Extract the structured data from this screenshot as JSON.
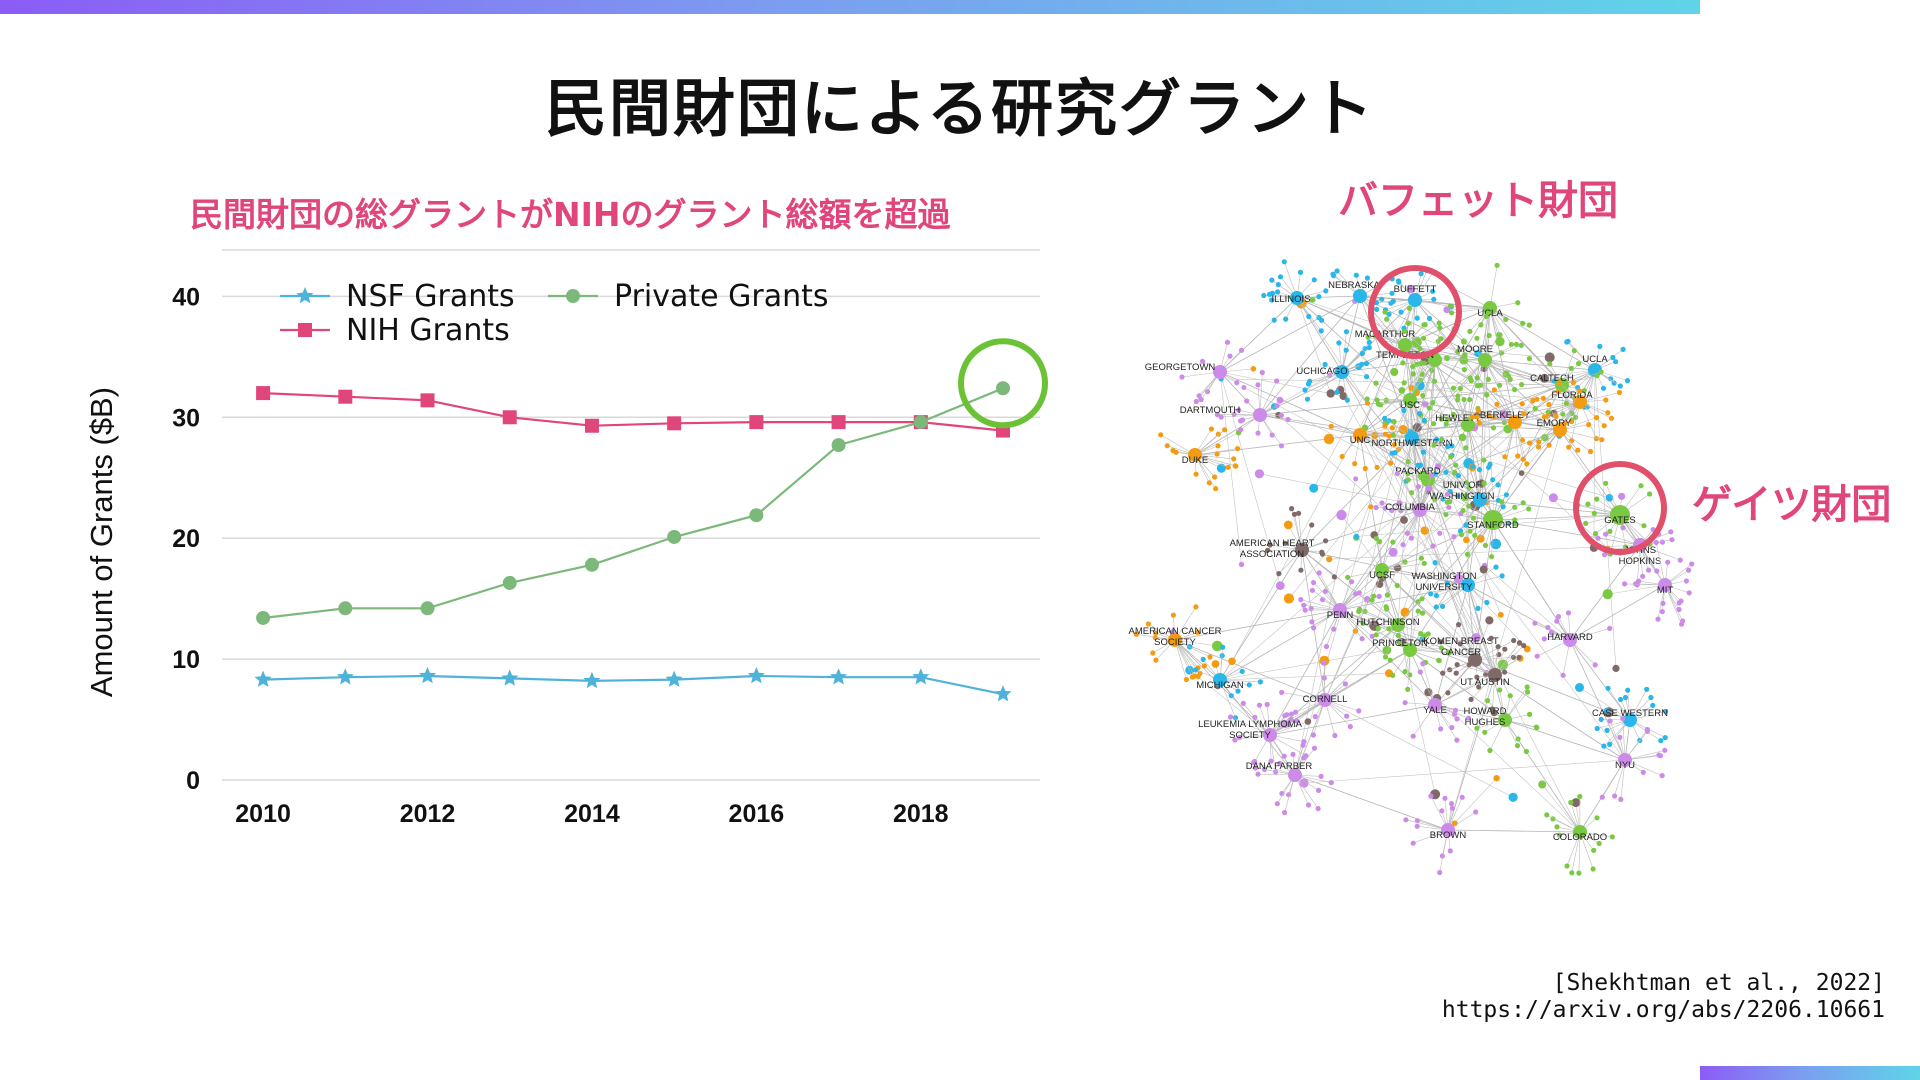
{
  "slide": {
    "title": "民間財団による研究グラント",
    "chart_subtitle": "民間財団の総グラントがNIHのグラント総額を超過",
    "citation_line1": "[Shekhtman et al., 2022]",
    "citation_line2": "https://arxiv.org/abs/2206.10661"
  },
  "colors": {
    "accent": "#e0457b",
    "nsf": "#4fb3d9",
    "nih": "#e0457b",
    "private": "#7cb87a",
    "highlight_green": "#6cc236",
    "highlight_red": "#e0506a"
  },
  "chart_data": {
    "type": "line",
    "title": "",
    "xlabel": "",
    "ylabel": "Amount of Grants ($B)",
    "x": [
      2010,
      2011,
      2012,
      2013,
      2014,
      2015,
      2016,
      2017,
      2018,
      2019
    ],
    "xticks": [
      "2010",
      "2012",
      "2014",
      "2016",
      "2018"
    ],
    "yticks": [
      "0",
      "10",
      "20",
      "30",
      "40"
    ],
    "xlim": [
      2009.5,
      2019.45
    ],
    "ylim": [
      0,
      44
    ],
    "grid": true,
    "legend_position": "top-left",
    "series": [
      {
        "name": "NSF Grants",
        "marker": "star",
        "values": [
          8.3,
          8.5,
          8.6,
          8.4,
          8.2,
          8.3,
          8.6,
          8.5,
          8.5,
          7.1
        ]
      },
      {
        "name": "NIH Grants",
        "marker": "square",
        "values": [
          32.0,
          31.7,
          31.4,
          30.0,
          29.3,
          29.5,
          29.6,
          29.6,
          29.6,
          28.9
        ]
      },
      {
        "name": "Private Grants",
        "marker": "circle",
        "values": [
          13.4,
          14.2,
          14.2,
          16.3,
          17.8,
          20.1,
          21.9,
          27.7,
          29.6,
          32.4
        ]
      }
    ],
    "highlight": {
      "series": "Private Grants",
      "x": 2019
    }
  },
  "network": {
    "label_buffett": "バフェット財団",
    "label_gates": "ゲイツ財団",
    "nodes": [
      {
        "label": "ILLINOIS",
        "color": "#29b6e8",
        "tx": -6,
        "ty": 0
      },
      {
        "label": "NEBRASKA",
        "color": "#29b6e8",
        "tx": -6,
        "ty": -12
      },
      {
        "label": "BUFFETT",
        "color": "#29b6e8",
        "tx": 0,
        "ty": -12
      },
      {
        "label": "UCLA",
        "color": "#7ac943",
        "tx": 0,
        "ty": 4
      },
      {
        "label": "MACARTHUR",
        "color": "#7ac943",
        "tx": -20,
        "ty": -12
      },
      {
        "label": "TEMPLETON",
        "color": "#7ac943",
        "tx": -30,
        "ty": -6
      },
      {
        "label": "GEORGETOWN",
        "color": "#cc8be8",
        "tx": -40,
        "ty": -6
      },
      {
        "label": "UCHICAGO",
        "color": "#29b6e8",
        "tx": -20,
        "ty": -2
      },
      {
        "label": "MOORE",
        "color": "#7ac943",
        "tx": -10,
        "ty": -12
      },
      {
        "label": "UCLA",
        "color": "#29b6e8",
        "tx": 0,
        "ty": -12
      },
      {
        "label": "CALTECH",
        "color": "#7ac943",
        "tx": -10,
        "ty": -8
      },
      {
        "label": "FLORIDA",
        "color": "#f39c12",
        "tx": -8,
        "ty": -8
      },
      {
        "label": "USC",
        "color": "#7ac943",
        "tx": 0,
        "ty": 4
      },
      {
        "label": "DARTMOUTH",
        "color": "#cc8be8",
        "tx": -50,
        "ty": -6
      },
      {
        "label": "UNC",
        "color": "#f39c12",
        "tx": 0,
        "ty": 4
      },
      {
        "label": "NORTHWESTERN",
        "color": "#29b6e8",
        "tx": 0,
        "ty": 4
      },
      {
        "label": "HEWLETT",
        "color": "#7ac943",
        "tx": -10,
        "ty": -8
      },
      {
        "label": "BERKELEY",
        "color": "#f39c12",
        "tx": -10,
        "ty": -8
      },
      {
        "label": "EMORY",
        "color": "#f39c12",
        "tx": -6,
        "ty": -8
      },
      {
        "label": "DUKE",
        "color": "#f39c12",
        "tx": 0,
        "ty": 4
      },
      {
        "label": "PACKARD",
        "color": "#7ac943",
        "tx": -10,
        "ty": -10
      },
      {
        "label": "UNIV OF WASHINGTON",
        "color": "#29b6e8",
        "tx": -18,
        "ty": -16
      },
      {
        "label": "COLUMBIA",
        "color": "#cc8be8",
        "tx": -10,
        "ty": -4
      },
      {
        "label": "STANFORD",
        "color": "#7ac943",
        "tx": 0,
        "ty": 4
      },
      {
        "label": "GATES",
        "color": "#7ac943",
        "tx": 0,
        "ty": 4
      },
      {
        "label": "JOHNS HOPKINS",
        "color": "#cc8be8",
        "tx": 0,
        "ty": 4
      },
      {
        "label": "AMERICAN HEART ASSOCIATION",
        "color": "#7f6a67",
        "tx": -30,
        "ty": -8
      },
      {
        "label": "UCSF",
        "color": "#7ac943",
        "tx": 0,
        "ty": 4
      },
      {
        "label": "WASHINGTON UNIVERSITY",
        "color": "#29b6e8",
        "tx": -24,
        "ty": -10
      },
      {
        "label": "MIT",
        "color": "#cc8be8",
        "tx": 0,
        "ty": 4
      },
      {
        "label": "PENN",
        "color": "#cc8be8",
        "tx": 0,
        "ty": 4
      },
      {
        "label": "HUTCHINSON",
        "color": "#7ac943",
        "tx": -10,
        "ty": -4
      },
      {
        "label": "AMERICAN CANCER SOCIETY",
        "color": "#f39c12",
        "tx": 0,
        "ty": -10
      },
      {
        "label": "PRINCETON",
        "color": "#7ac943",
        "tx": -10,
        "ty": -8
      },
      {
        "label": "KOMEN BREAST CANCER",
        "color": "#7f6a67",
        "tx": -14,
        "ty": -20
      },
      {
        "label": "HARVARD",
        "color": "#cc8be8",
        "tx": 0,
        "ty": -4
      },
      {
        "label": "MICHIGAN",
        "color": "#29b6e8",
        "tx": 0,
        "ty": 4
      },
      {
        "label": "UT AUSTIN",
        "color": "#7f6a67",
        "tx": -10,
        "ty": 6
      },
      {
        "label": "CORNELL",
        "color": "#cc8be8",
        "tx": 0,
        "ty": -2
      },
      {
        "label": "YALE",
        "color": "#cc8be8",
        "tx": 0,
        "ty": 4
      },
      {
        "label": "HOWARD HUGHES",
        "color": "#7ac943",
        "tx": -20,
        "ty": -10
      },
      {
        "label": "CASE WESTERN",
        "color": "#29b6e8",
        "tx": 0,
        "ty": -8
      },
      {
        "label": "LEUKEMIA LYMPHOMA SOCIETY",
        "color": "#cc8be8",
        "tx": -20,
        "ty": -12
      },
      {
        "label": "NYU",
        "color": "#cc8be8",
        "tx": 0,
        "ty": 4
      },
      {
        "label": "DANA FARBER",
        "color": "#cc8be8",
        "tx": -16,
        "ty": -10
      },
      {
        "label": "BROWN",
        "color": "#cc8be8",
        "tx": 0,
        "ty": 4
      },
      {
        "label": "COLORADO",
        "color": "#7ac943",
        "tx": 0,
        "ty": 4
      }
    ]
  }
}
